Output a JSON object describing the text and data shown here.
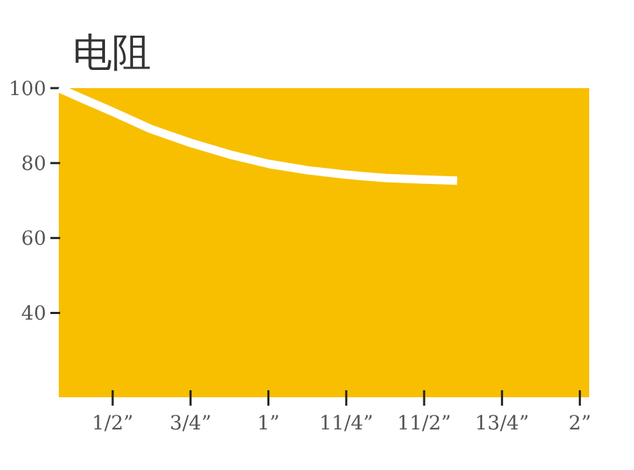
{
  "chart_data": {
    "type": "line",
    "title": "电阻",
    "x": [
      0.327,
      0.4,
      0.5,
      0.625,
      0.75,
      0.875,
      1,
      1.125,
      1.25,
      1.375,
      1.5,
      1.606
    ],
    "series": [
      {
        "color": "#ffffff",
        "values": [
          100,
          97.3,
          93.7,
          89,
          85.4,
          82.3,
          79.8,
          78.1,
          76.9,
          76,
          75.6,
          75.3
        ]
      }
    ],
    "xlim": [
      0.327,
      2.03
    ],
    "ylim": [
      17.5,
      100
    ],
    "xticks": [
      {
        "value": 0.5,
        "label": "1/2”"
      },
      {
        "value": 0.75,
        "label": "3/4”"
      },
      {
        "value": 1,
        "label": "1”"
      },
      {
        "value": 1.25,
        "label": "11/4”"
      },
      {
        "value": 1.5,
        "label": "11/2”"
      },
      {
        "value": 1.75,
        "label": "13/4”"
      },
      {
        "value": 2,
        "label": "2”"
      }
    ],
    "yticks": [
      40,
      60,
      80,
      100
    ],
    "grid": false,
    "marker": "none",
    "line_style": "solid"
  }
}
